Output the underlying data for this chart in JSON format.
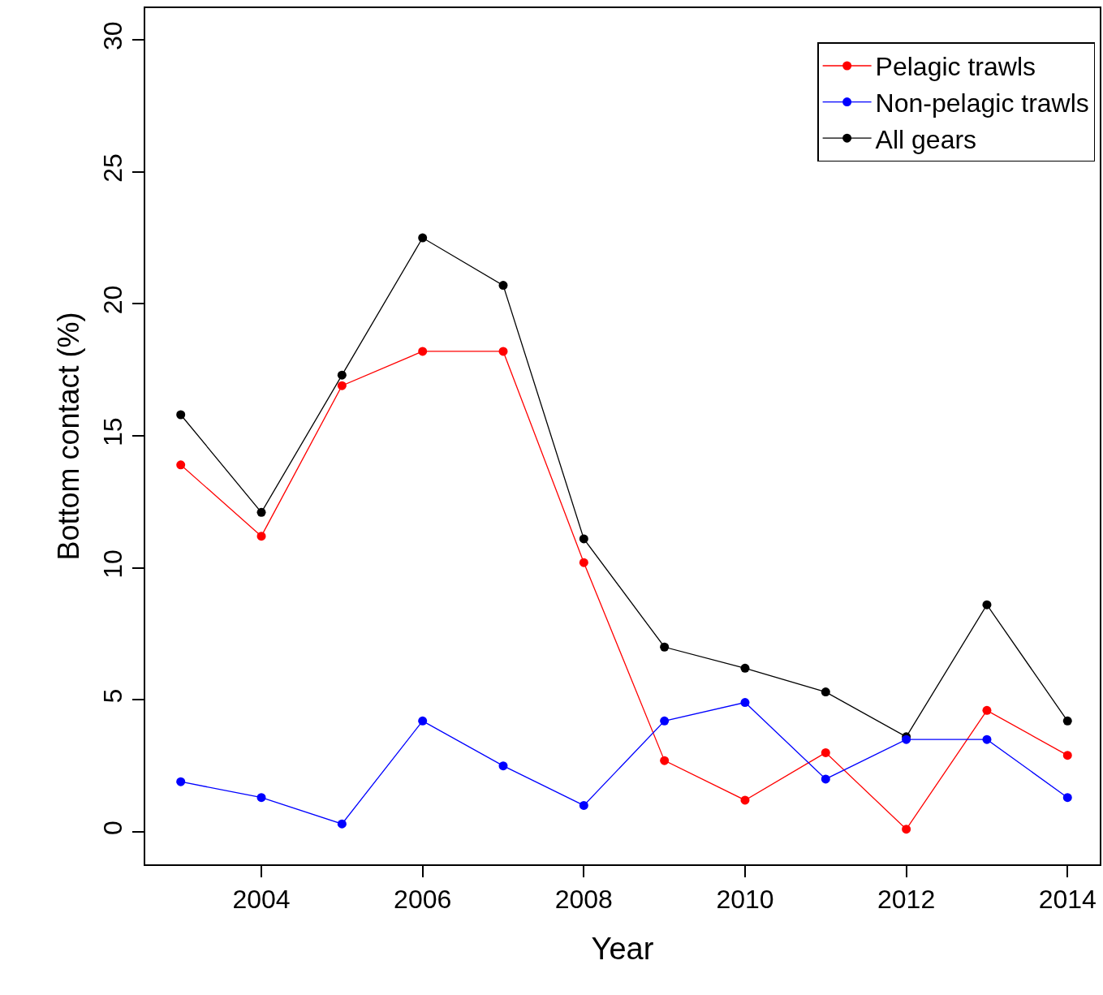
{
  "chart_data": {
    "type": "line",
    "xlabel": "Year",
    "ylabel": "Bottom contact (%)",
    "x": [
      2003,
      2004,
      2005,
      2006,
      2007,
      2008,
      2009,
      2010,
      2011,
      2012,
      2013,
      2014
    ],
    "series": [
      {
        "name": "Pelagic trawls",
        "color": "#ff0000",
        "values": [
          13.9,
          11.2,
          16.9,
          18.2,
          18.2,
          10.2,
          2.7,
          1.2,
          3.0,
          0.1,
          4.6,
          2.9
        ]
      },
      {
        "name": "Non-pelagic trawls",
        "color": "#0000ff",
        "values": [
          1.9,
          1.3,
          0.3,
          4.2,
          2.5,
          1.0,
          4.2,
          4.9,
          2.0,
          3.5,
          3.5,
          1.3
        ]
      },
      {
        "name": "All gears",
        "color": "#000000",
        "values": [
          15.8,
          12.1,
          17.3,
          22.5,
          20.7,
          11.1,
          7.0,
          6.2,
          5.3,
          3.6,
          8.6,
          4.2
        ]
      }
    ],
    "xlim": [
      2002.56,
      2014.4
    ],
    "xticks": [
      2004,
      2006,
      2008,
      2010,
      2012,
      2014
    ],
    "ylim": [
      -1.23,
      31.2
    ],
    "yticks": [
      0,
      5,
      10,
      15,
      20,
      25,
      30
    ],
    "grid": false,
    "legend": "top right",
    "marker": "circle",
    "line_style": "solid"
  }
}
